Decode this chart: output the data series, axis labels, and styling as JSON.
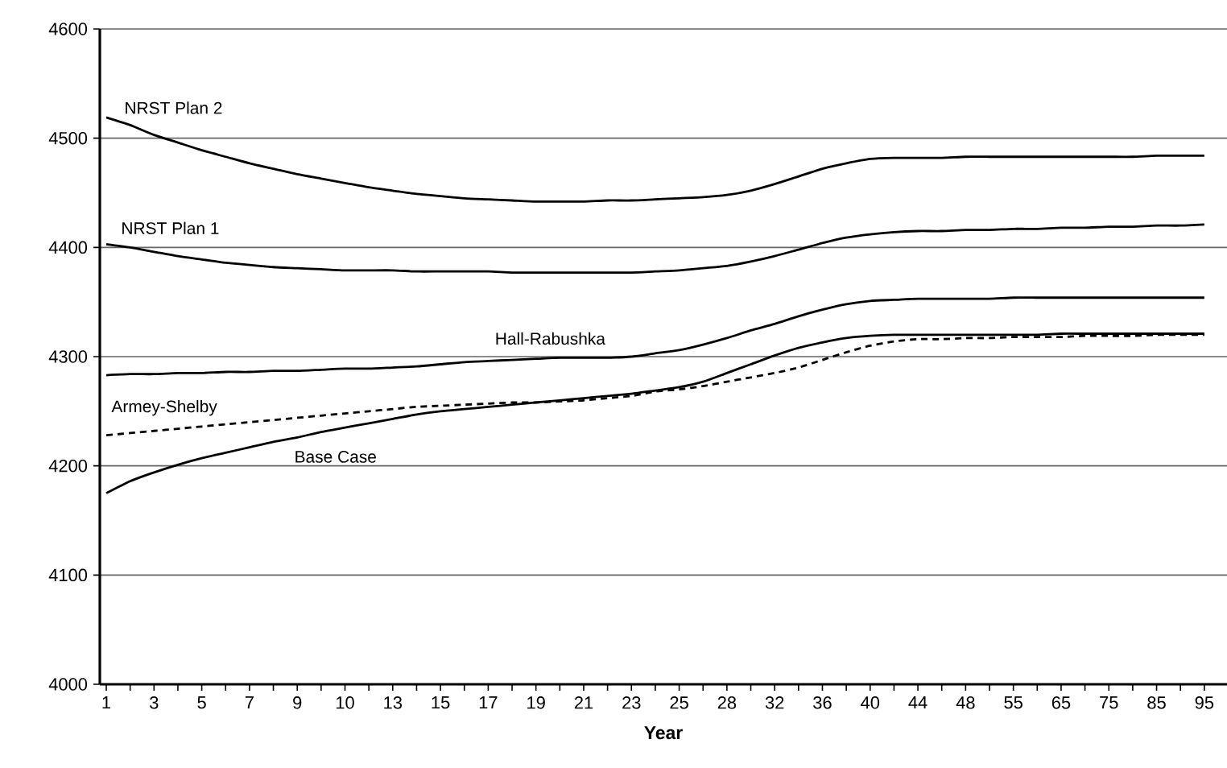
{
  "chart_data": {
    "type": "line",
    "xlabel": "Year",
    "categories": [
      "1",
      null,
      "3",
      null,
      "5",
      null,
      "7",
      null,
      "9",
      null,
      "10",
      null,
      "13",
      null,
      "15",
      null,
      "17",
      null,
      "19",
      null,
      "21",
      null,
      "23",
      null,
      "25",
      null,
      "28",
      null,
      "32",
      null,
      "36",
      null,
      "40",
      null,
      "44",
      null,
      "48",
      null,
      "55",
      null,
      "65",
      null,
      "75",
      null,
      "85",
      null,
      "95"
    ],
    "ylim": [
      4000,
      4600
    ],
    "yticks": [
      4000,
      4100,
      4200,
      4300,
      4400,
      4500,
      4600
    ],
    "grid": "y",
    "marker": "none",
    "series": [
      {
        "name": "NRST Plan 2",
        "color": "#000000",
        "line_style": "solid",
        "values": [
          4519,
          4512,
          4503,
          4496,
          4489,
          4483,
          4477,
          4472,
          4467,
          4463,
          4459,
          4455,
          4452,
          4449,
          4447,
          4445,
          4444,
          4443,
          4442,
          4442,
          4442,
          4443,
          4443,
          4444,
          4445,
          4446,
          4448,
          4452,
          4458,
          4465,
          4472,
          4477,
          4481,
          4482,
          4482,
          4482,
          4483,
          4483,
          4483,
          4483,
          4483,
          4483,
          4483,
          4483,
          4484,
          4484,
          4484
        ]
      },
      {
        "name": "NRST Plan 1",
        "color": "#000000",
        "line_style": "solid",
        "values": [
          4403,
          4400,
          4396,
          4392,
          4389,
          4386,
          4384,
          4382,
          4381,
          4380,
          4379,
          4379,
          4379,
          4378,
          4378,
          4378,
          4378,
          4377,
          4377,
          4377,
          4377,
          4377,
          4377,
          4378,
          4379,
          4381,
          4383,
          4387,
          4392,
          4398,
          4404,
          4409,
          4412,
          4414,
          4415,
          4415,
          4416,
          4416,
          4417,
          4417,
          4418,
          4418,
          4419,
          4419,
          4420,
          4420,
          4421
        ]
      },
      {
        "name": "Hall-Rabushka",
        "color": "#000000",
        "line_style": "solid",
        "values": [
          4283,
          4284,
          4284,
          4285,
          4285,
          4286,
          4286,
          4287,
          4287,
          4288,
          4289,
          4289,
          4290,
          4291,
          4293,
          4295,
          4296,
          4297,
          4298,
          4299,
          4299,
          4299,
          4300,
          4303,
          4306,
          4311,
          4317,
          4324,
          4330,
          4337,
          4343,
          4348,
          4351,
          4352,
          4353,
          4353,
          4353,
          4353,
          4354,
          4354,
          4354,
          4354,
          4354,
          4354,
          4354,
          4354,
          4354
        ]
      },
      {
        "name": "Armey-Shelby",
        "color": "#000000",
        "line_style": "dashed",
        "values": [
          4228,
          4230,
          4232,
          4234,
          4236,
          4238,
          4240,
          4242,
          4244,
          4246,
          4248,
          4250,
          4252,
          4254,
          4255,
          4256,
          4257,
          4258,
          4258,
          4259,
          4260,
          4262,
          4264,
          4268,
          4270,
          4273,
          4277,
          4281,
          4285,
          4290,
          4297,
          4304,
          4310,
          4314,
          4316,
          4316,
          4317,
          4317,
          4318,
          4318,
          4318,
          4319,
          4319,
          4319,
          4320,
          4320,
          4320
        ]
      },
      {
        "name": "Base Case",
        "color": "#000000",
        "line_style": "solid",
        "values": [
          4175,
          4186,
          4194,
          4201,
          4207,
          4212,
          4217,
          4222,
          4226,
          4231,
          4235,
          4239,
          4243,
          4247,
          4250,
          4252,
          4254,
          4256,
          4258,
          4260,
          4262,
          4264,
          4266,
          4269,
          4272,
          4277,
          4285,
          4293,
          4301,
          4308,
          4313,
          4317,
          4319,
          4320,
          4320,
          4320,
          4320,
          4320,
          4320,
          4320,
          4321,
          4321,
          4321,
          4321,
          4321,
          4321,
          4321
        ]
      }
    ]
  }
}
